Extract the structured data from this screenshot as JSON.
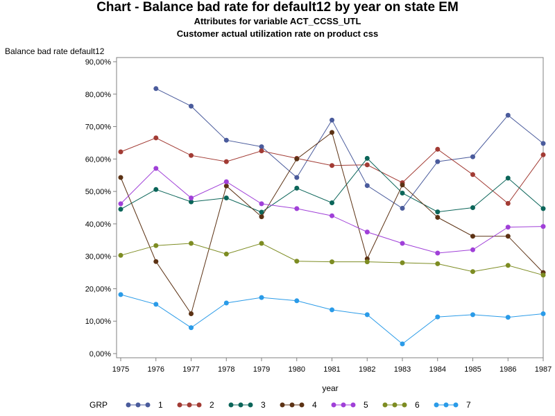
{
  "chart_data": {
    "type": "line",
    "title": "Chart - Balance bad rate for default12 by year on state EM",
    "subtitle": "Attributes for variable ACT_CCSS_UTL",
    "subtitle2": "Customer actual utilization rate on product css",
    "ylabel": "Balance bad rate default12",
    "xlabel": "year",
    "legend_title": "GRP",
    "legend_position": "bottom",
    "grid": false,
    "ylim": [
      0,
      0.9
    ],
    "y_ticks": [
      "0,00%",
      "10,00%",
      "20,00%",
      "30,00%",
      "40,00%",
      "50,00%",
      "60,00%",
      "70,00%",
      "80,00%",
      "90,00%"
    ],
    "categories": [
      "1975",
      "1976",
      "1977",
      "1978",
      "1979",
      "1980",
      "1981",
      "1982",
      "1983",
      "1984",
      "1985",
      "1986",
      "1987"
    ],
    "series": [
      {
        "name": "1",
        "color": "#4a5b9c",
        "values": [
          null,
          0.817,
          0.763,
          0.658,
          0.638,
          0.543,
          0.72,
          0.518,
          0.448,
          0.592,
          0.607,
          0.735,
          0.648
        ]
      },
      {
        "name": "2",
        "color": "#a23b34",
        "values": [
          0.622,
          0.665,
          0.611,
          0.592,
          0.625,
          0.602,
          0.58,
          0.582,
          0.527,
          0.63,
          0.552,
          0.463,
          0.613
        ]
      },
      {
        "name": "3",
        "color": "#0b6559",
        "values": [
          0.445,
          0.506,
          0.468,
          0.48,
          0.436,
          0.51,
          0.465,
          0.602,
          0.495,
          0.437,
          0.45,
          0.541,
          0.447
        ]
      },
      {
        "name": "4",
        "color": "#5c3214",
        "values": [
          0.543,
          0.284,
          0.123,
          0.517,
          0.422,
          0.6,
          0.682,
          0.292,
          0.52,
          0.42,
          0.362,
          0.362,
          0.25
        ]
      },
      {
        "name": "5",
        "color": "#a040d8",
        "values": [
          0.462,
          0.571,
          0.48,
          0.53,
          0.462,
          0.447,
          0.425,
          0.375,
          0.34,
          0.31,
          0.32,
          0.39,
          0.392
        ]
      },
      {
        "name": "6",
        "color": "#7d8c22",
        "values": [
          0.303,
          0.333,
          0.34,
          0.307,
          0.34,
          0.285,
          0.283,
          0.283,
          0.28,
          0.277,
          0.253,
          0.272,
          0.242
        ]
      },
      {
        "name": "7",
        "color": "#2a9be8",
        "values": [
          0.182,
          0.152,
          0.08,
          0.156,
          0.173,
          0.163,
          0.135,
          0.12,
          0.03,
          0.113,
          0.12,
          0.112,
          0.123
        ]
      }
    ]
  }
}
